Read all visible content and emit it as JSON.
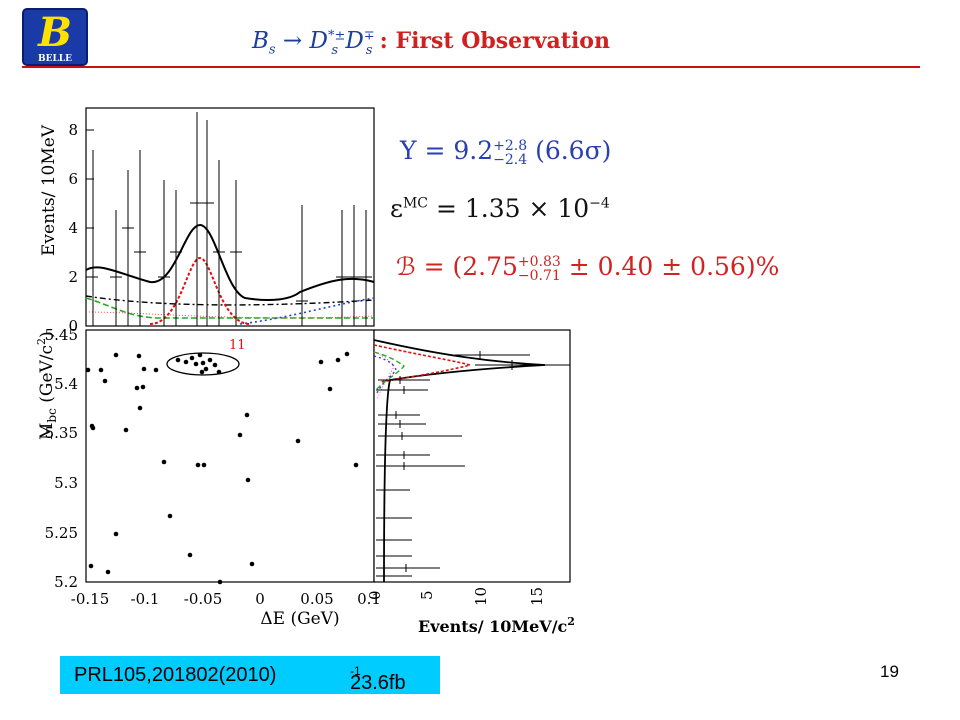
{
  "logo": {
    "letter": "B",
    "text": "BELLE"
  },
  "title": {
    "expr_left": "B",
    "expr_left_sub": "s",
    "arrow": "→",
    "d1": "D",
    "d1_sup": "*±",
    "d1_sub": "s",
    "d2": "D",
    "d2_sup": "∓",
    "d2_sub": "s",
    "colon": " : ",
    "text": "First Observation"
  },
  "equations": {
    "yield": {
      "lhs": "Y = 9.2",
      "up": "+2.8",
      "down": "−2.4",
      "tail": "(6.6σ)"
    },
    "eff": {
      "lhs": "ε",
      "sup": "MC",
      "rhs": " = 1.35 × 10",
      "exp": "−4"
    },
    "br": {
      "lhs": "ℬ = (2.75",
      "up": "+0.83",
      "down": "−0.71",
      "tail": " ± 0.40 ± 0.56)%"
    }
  },
  "top_plot": {
    "ylabel": "Events/ 10MeV",
    "yticks": [
      "0",
      "2",
      "4",
      "6",
      "8"
    ]
  },
  "scatter": {
    "ylabel_main": "M",
    "ylabel_sub": "bc",
    "ylabel_unit": " (GeV/c",
    "ylabel_sup": "2",
    "ylabel_close": ")",
    "xlabel": "ΔE (GeV)",
    "yticks": [
      "5.2",
      "5.25",
      "5.3",
      "5.35",
      "5.4",
      "5.45"
    ],
    "xticks": [
      "-0.15",
      "-0.1",
      "-0.05",
      "0",
      "0.05",
      "0.1"
    ],
    "ellipse_label": "11"
  },
  "right_plot": {
    "xticks": [
      "0",
      "5",
      "10",
      "15"
    ],
    "xlabel_main": "Events/ 10MeV/c",
    "xlabel_sup": "2"
  },
  "reference": {
    "paper": "PRL105,201802(2010)",
    "lumi": "23.6fb",
    "lumi_sup": "-1"
  },
  "page_number": "19",
  "colors": {
    "title_blue": "#1c3f9c",
    "accent_red": "#d12020",
    "ref_bg": "#00ccff"
  }
}
